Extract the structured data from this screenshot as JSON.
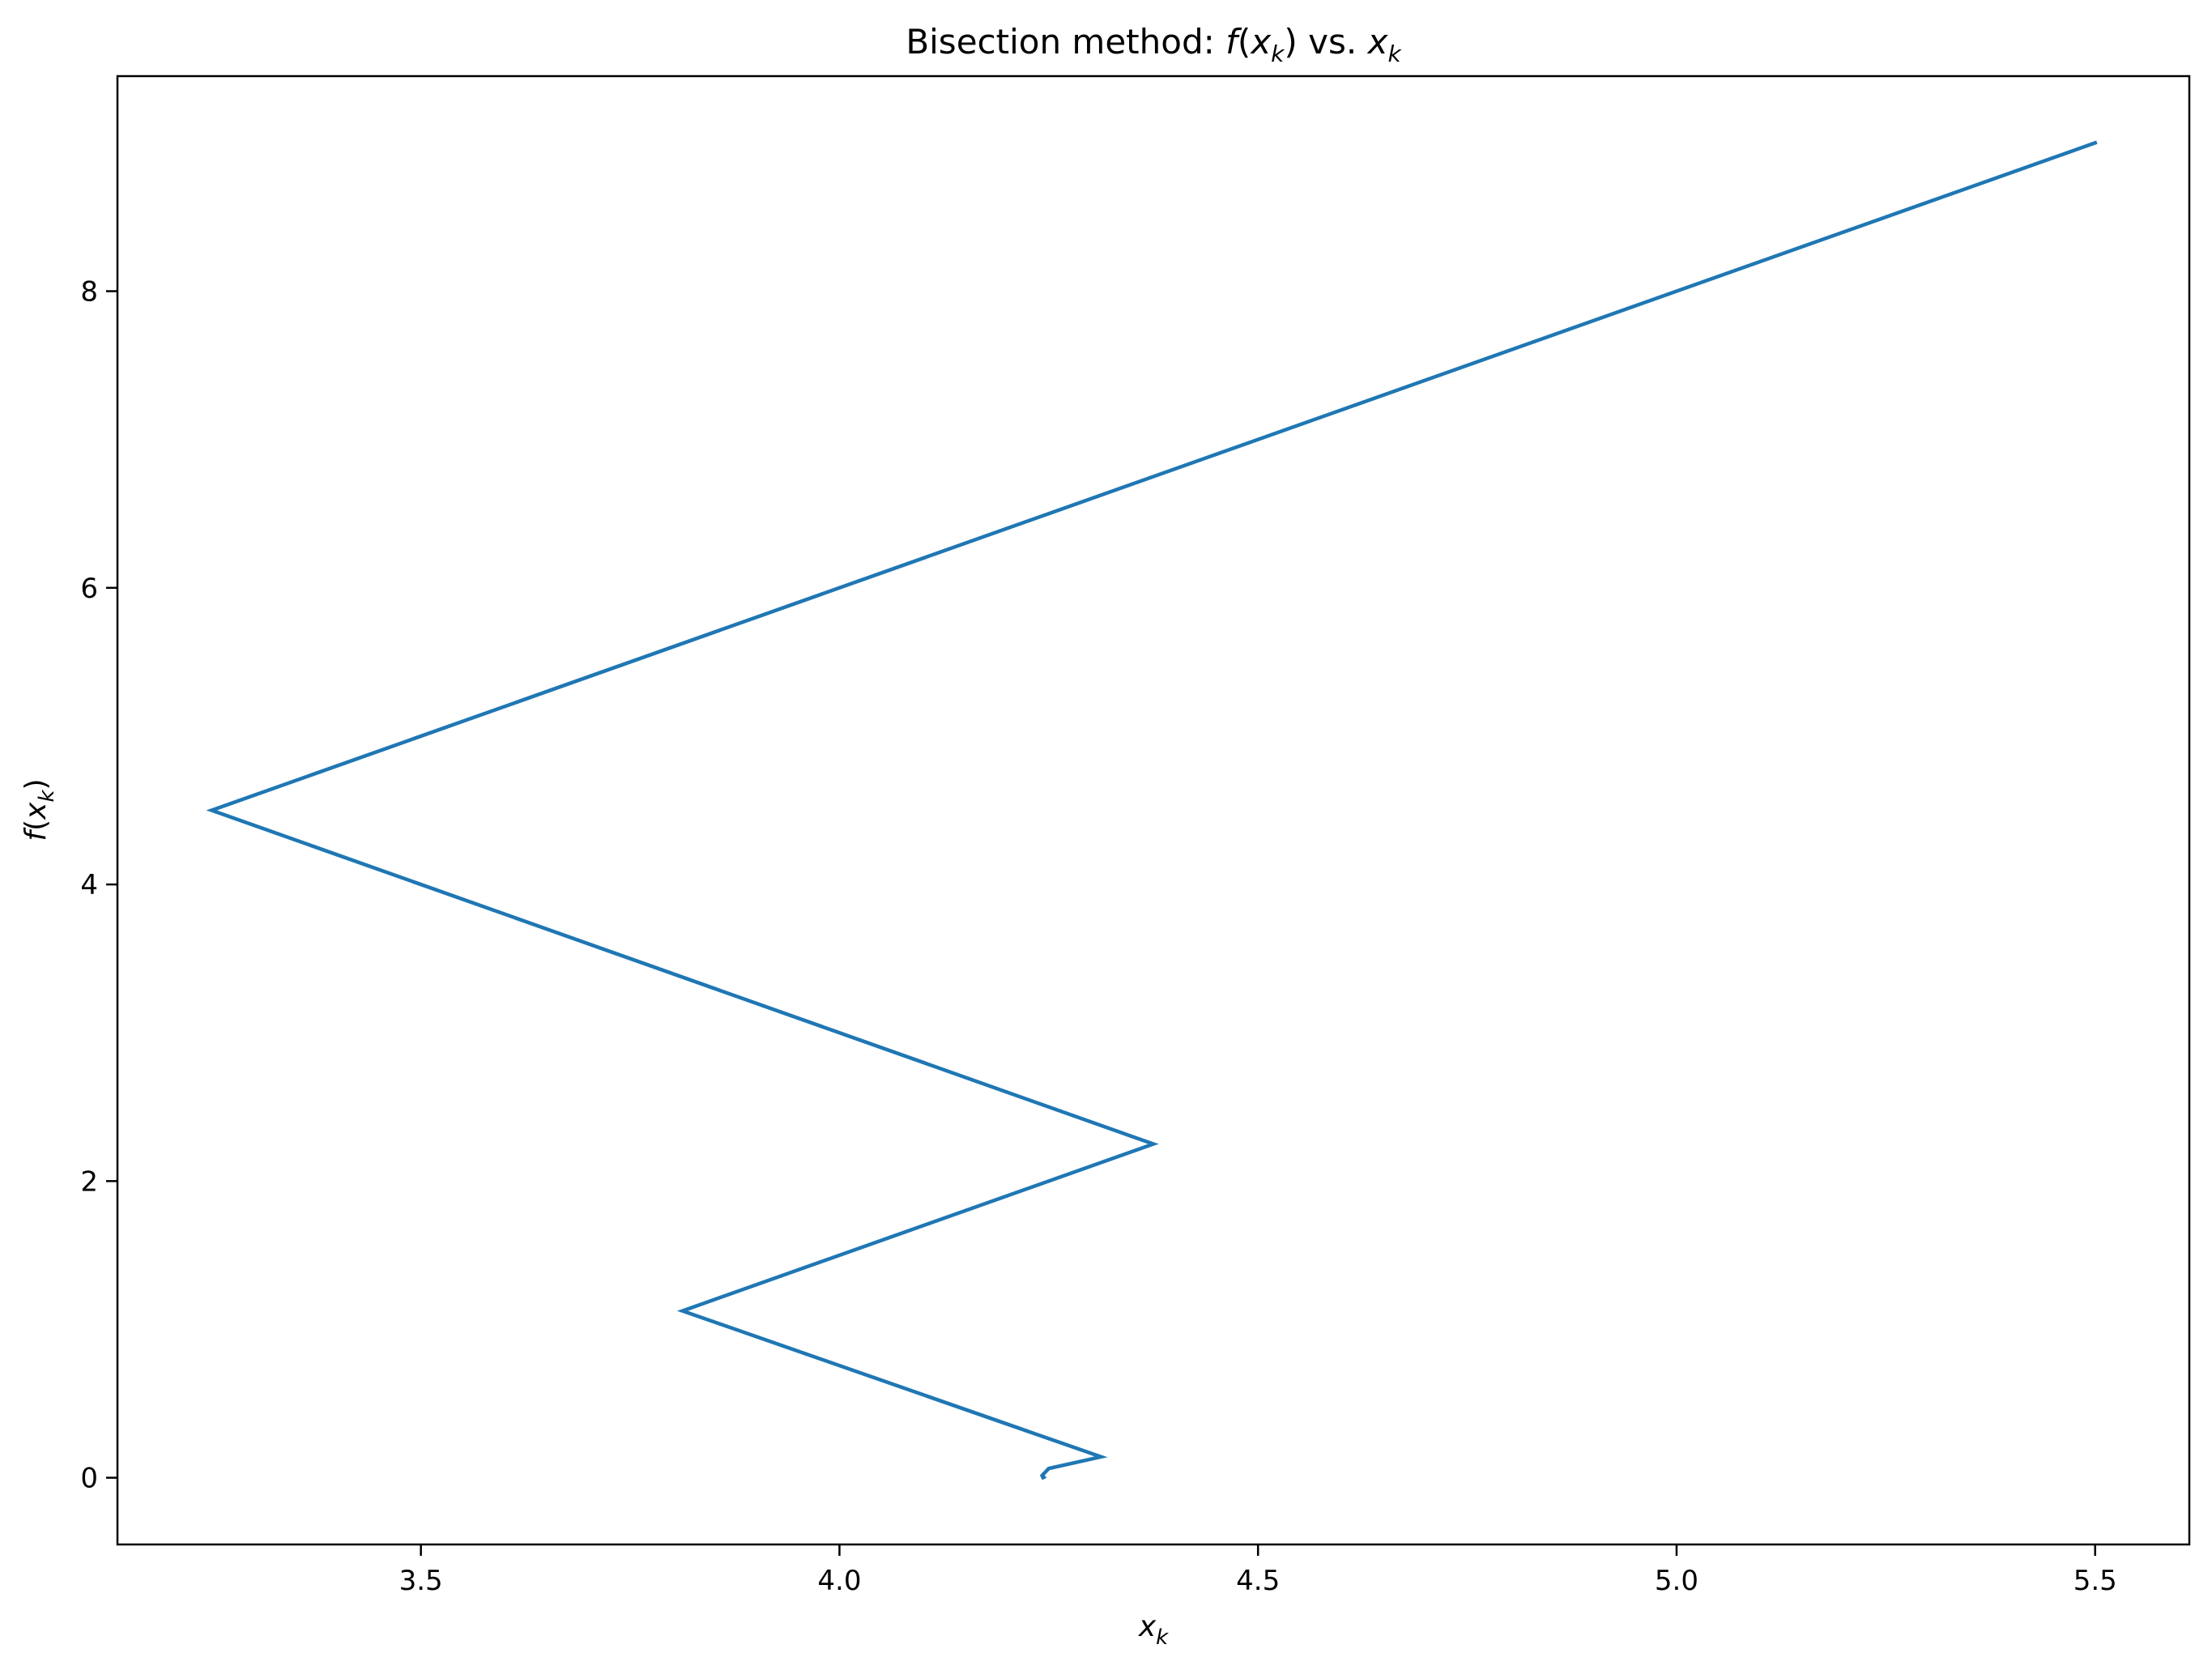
{
  "chart_data": {
    "type": "line",
    "title": "Bisection method: f(x_k) vs. x_k",
    "xlabel": "x_k",
    "ylabel": "f(x_k)",
    "xlim": [
      3.1375,
      5.6125
    ],
    "ylim": [
      -0.45,
      9.45
    ],
    "xticks": [
      3.5,
      4.0,
      4.5,
      5.0,
      5.5
    ],
    "xtick_labels": [
      "3.5",
      "4.0",
      "4.5",
      "5.0",
      "5.5"
    ],
    "yticks": [
      0,
      2,
      4,
      6,
      8
    ],
    "ytick_labels": [
      "0",
      "2",
      "4",
      "6",
      "8"
    ],
    "grid": false,
    "series": [
      {
        "color": "#1f77b4",
        "x": [
          5.5,
          3.25,
          4.375,
          3.8125,
          4.3125,
          4.25,
          4.2422,
          4.2441,
          4.2432
        ],
        "y": [
          9.0,
          4.5,
          2.25,
          1.125,
          0.141,
          0.0625,
          0.0156,
          0.0039,
          0.001
        ]
      }
    ]
  }
}
